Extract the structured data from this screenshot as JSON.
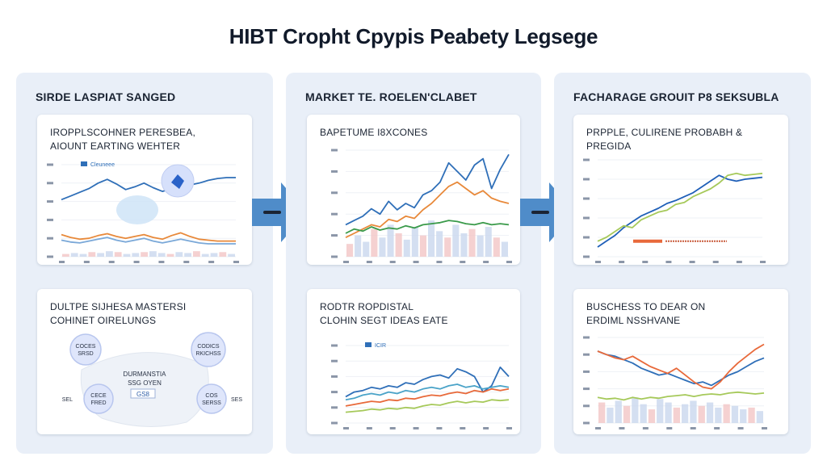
{
  "header": {
    "title": "HIBT Cropht Cpypis Peabety Legsege"
  },
  "columns": [
    {
      "title": "SIRDE LASPIAT SANGED",
      "cards": [
        {
          "title_lines": [
            "IROPPLSCOHNER PERESBEA,",
            "AIOUNT EARTING WEHTER"
          ],
          "legend": "Cleuneee"
        },
        {
          "title_lines": [
            "DULTPE SIJHESA MASTERSI",
            "COHINET OIRELUNGS"
          ]
        }
      ]
    },
    {
      "title": "MARKET TE. ROELEN'CLABET",
      "cards": [
        {
          "title_lines": [
            "BAPETUME I8XCONES"
          ]
        },
        {
          "title_lines": [
            "RODTR ROPDISTAL",
            "CLOHIN SEGT IDEAS EATE"
          ],
          "legend": "ICIR"
        }
      ]
    },
    {
      "title": "FACHARAGE GROUIT P8 SEKSUBLA",
      "cards": [
        {
          "title_lines": [
            "PRPPLE, CULIRENE PROBABH &",
            "PREGIDA"
          ]
        },
        {
          "title_lines": [
            "BUSCHESS TO DEAR ON",
            "ERDIML NSSHVANE"
          ]
        }
      ]
    }
  ],
  "network": {
    "center": [
      "DURMANSTIA",
      "SSG OYEN"
    ],
    "badge": "GS8",
    "nodes": [
      {
        "lines": [
          "COCES",
          "SRSD"
        ]
      },
      {
        "lines": [
          "CODICS",
          "RKICHSS"
        ]
      },
      {
        "lines": [
          "CECE",
          "FRED"
        ]
      },
      {
        "lines": [
          "COS",
          "SERSS"
        ]
      }
    ],
    "side_labels": [
      "SEL",
      "SES"
    ]
  },
  "chart_data": [
    {
      "type": "line",
      "panel": "left-top",
      "series": [
        {
          "color": "#2f6fb8",
          "values": [
            62,
            66,
            70,
            74,
            80,
            84,
            79,
            73,
            76,
            80,
            75,
            71,
            74,
            76,
            78,
            80,
            83,
            85,
            86,
            86
          ]
        },
        {
          "color": "#e8893a",
          "values": [
            24,
            21,
            19,
            20,
            23,
            25,
            22,
            20,
            22,
            24,
            21,
            19,
            23,
            26,
            22,
            19,
            18,
            17,
            17,
            17
          ]
        },
        {
          "color": "#7aa8d8",
          "values": [
            18,
            16,
            15,
            17,
            19,
            21,
            18,
            16,
            18,
            20,
            17,
            15,
            17,
            19,
            17,
            15,
            14,
            14,
            14,
            14
          ]
        }
      ],
      "bars": [
        3,
        4,
        3,
        5,
        4,
        6,
        5,
        3,
        4,
        5,
        6,
        4,
        3,
        5,
        4,
        6,
        3,
        4,
        5,
        3
      ],
      "ylim": [
        0,
        100
      ]
    },
    {
      "type": "line",
      "panel": "middle-top",
      "series": [
        {
          "color": "#2f6fb8",
          "values": [
            30,
            34,
            38,
            45,
            40,
            52,
            44,
            50,
            46,
            58,
            62,
            70,
            88,
            80,
            72,
            86,
            92,
            64,
            82,
            96
          ]
        },
        {
          "color": "#e8893a",
          "values": [
            18,
            22,
            26,
            30,
            28,
            35,
            33,
            38,
            36,
            44,
            50,
            58,
            66,
            70,
            64,
            58,
            62,
            55,
            52,
            50
          ]
        },
        {
          "color": "#3a9a4a",
          "values": [
            22,
            26,
            24,
            28,
            25,
            27,
            26,
            29,
            27,
            30,
            31,
            32,
            34,
            33,
            31,
            30,
            32,
            30,
            31,
            30
          ]
        }
      ],
      "bars": [
        12,
        20,
        14,
        26,
        18,
        30,
        22,
        16,
        28,
        20,
        34,
        24,
        18,
        30,
        22,
        26,
        20,
        28,
        18,
        14
      ],
      "ylim": [
        0,
        100
      ]
    },
    {
      "type": "line",
      "panel": "middle-bottom",
      "series": [
        {
          "color": "#2f6fb8",
          "values": [
            34,
            40,
            42,
            46,
            44,
            48,
            46,
            52,
            50,
            56,
            60,
            62,
            58,
            70,
            66,
            60,
            40,
            48,
            72,
            60
          ]
        },
        {
          "color": "#4aa3c8",
          "values": [
            30,
            32,
            36,
            38,
            36,
            40,
            38,
            42,
            40,
            44,
            46,
            44,
            48,
            50,
            46,
            48,
            44,
            46,
            48,
            46
          ]
        },
        {
          "color": "#e8693a",
          "values": [
            22,
            24,
            26,
            28,
            27,
            30,
            29,
            32,
            31,
            34,
            36,
            35,
            38,
            40,
            38,
            42,
            40,
            44,
            42,
            44
          ]
        },
        {
          "color": "#a6c95a",
          "values": [
            14,
            15,
            16,
            18,
            17,
            19,
            18,
            20,
            19,
            22,
            24,
            23,
            26,
            28,
            26,
            28,
            27,
            30,
            29,
            30
          ]
        }
      ],
      "ylim": [
        0,
        100
      ]
    },
    {
      "type": "line",
      "panel": "right-top",
      "series": [
        {
          "color": "#1f5fb8",
          "values": [
            10,
            16,
            22,
            30,
            36,
            42,
            46,
            50,
            55,
            58,
            62,
            66,
            72,
            78,
            84,
            80,
            78,
            80,
            81,
            82
          ]
        },
        {
          "color": "#a6c95a",
          "values": [
            16,
            20,
            26,
            32,
            30,
            38,
            42,
            46,
            48,
            54,
            56,
            62,
            66,
            70,
            76,
            84,
            86,
            84,
            85,
            86
          ]
        }
      ],
      "flat_line": {
        "color": "#e8693a",
        "value": 16
      },
      "ylim": [
        0,
        100
      ]
    },
    {
      "type": "line",
      "panel": "right-bottom",
      "series": [
        {
          "color": "#2f6fb8",
          "values": [
            84,
            80,
            78,
            74,
            70,
            64,
            60,
            56,
            58,
            54,
            50,
            46,
            48,
            44,
            50,
            56,
            60,
            66,
            72,
            76
          ]
        },
        {
          "color": "#e8693a",
          "values": [
            84,
            80,
            76,
            74,
            78,
            72,
            66,
            62,
            58,
            64,
            56,
            48,
            42,
            40,
            48,
            60,
            70,
            78,
            86,
            92
          ]
        },
        {
          "color": "#a6c95a",
          "values": [
            30,
            28,
            29,
            27,
            30,
            28,
            30,
            29,
            31,
            32,
            33,
            31,
            33,
            34,
            33,
            35,
            36,
            35,
            34,
            35
          ]
        }
      ],
      "bars": [
        24,
        18,
        26,
        20,
        30,
        22,
        16,
        28,
        24,
        18,
        22,
        26,
        20,
        24,
        18,
        22,
        20,
        16,
        18,
        14
      ],
      "ylim": [
        0,
        100
      ]
    }
  ],
  "colors": {
    "column_bg": "#e9eff8",
    "arrow": "#4f8cc9",
    "node_fill": "#dfe6fb",
    "node_stroke": "#b8c6ee"
  }
}
